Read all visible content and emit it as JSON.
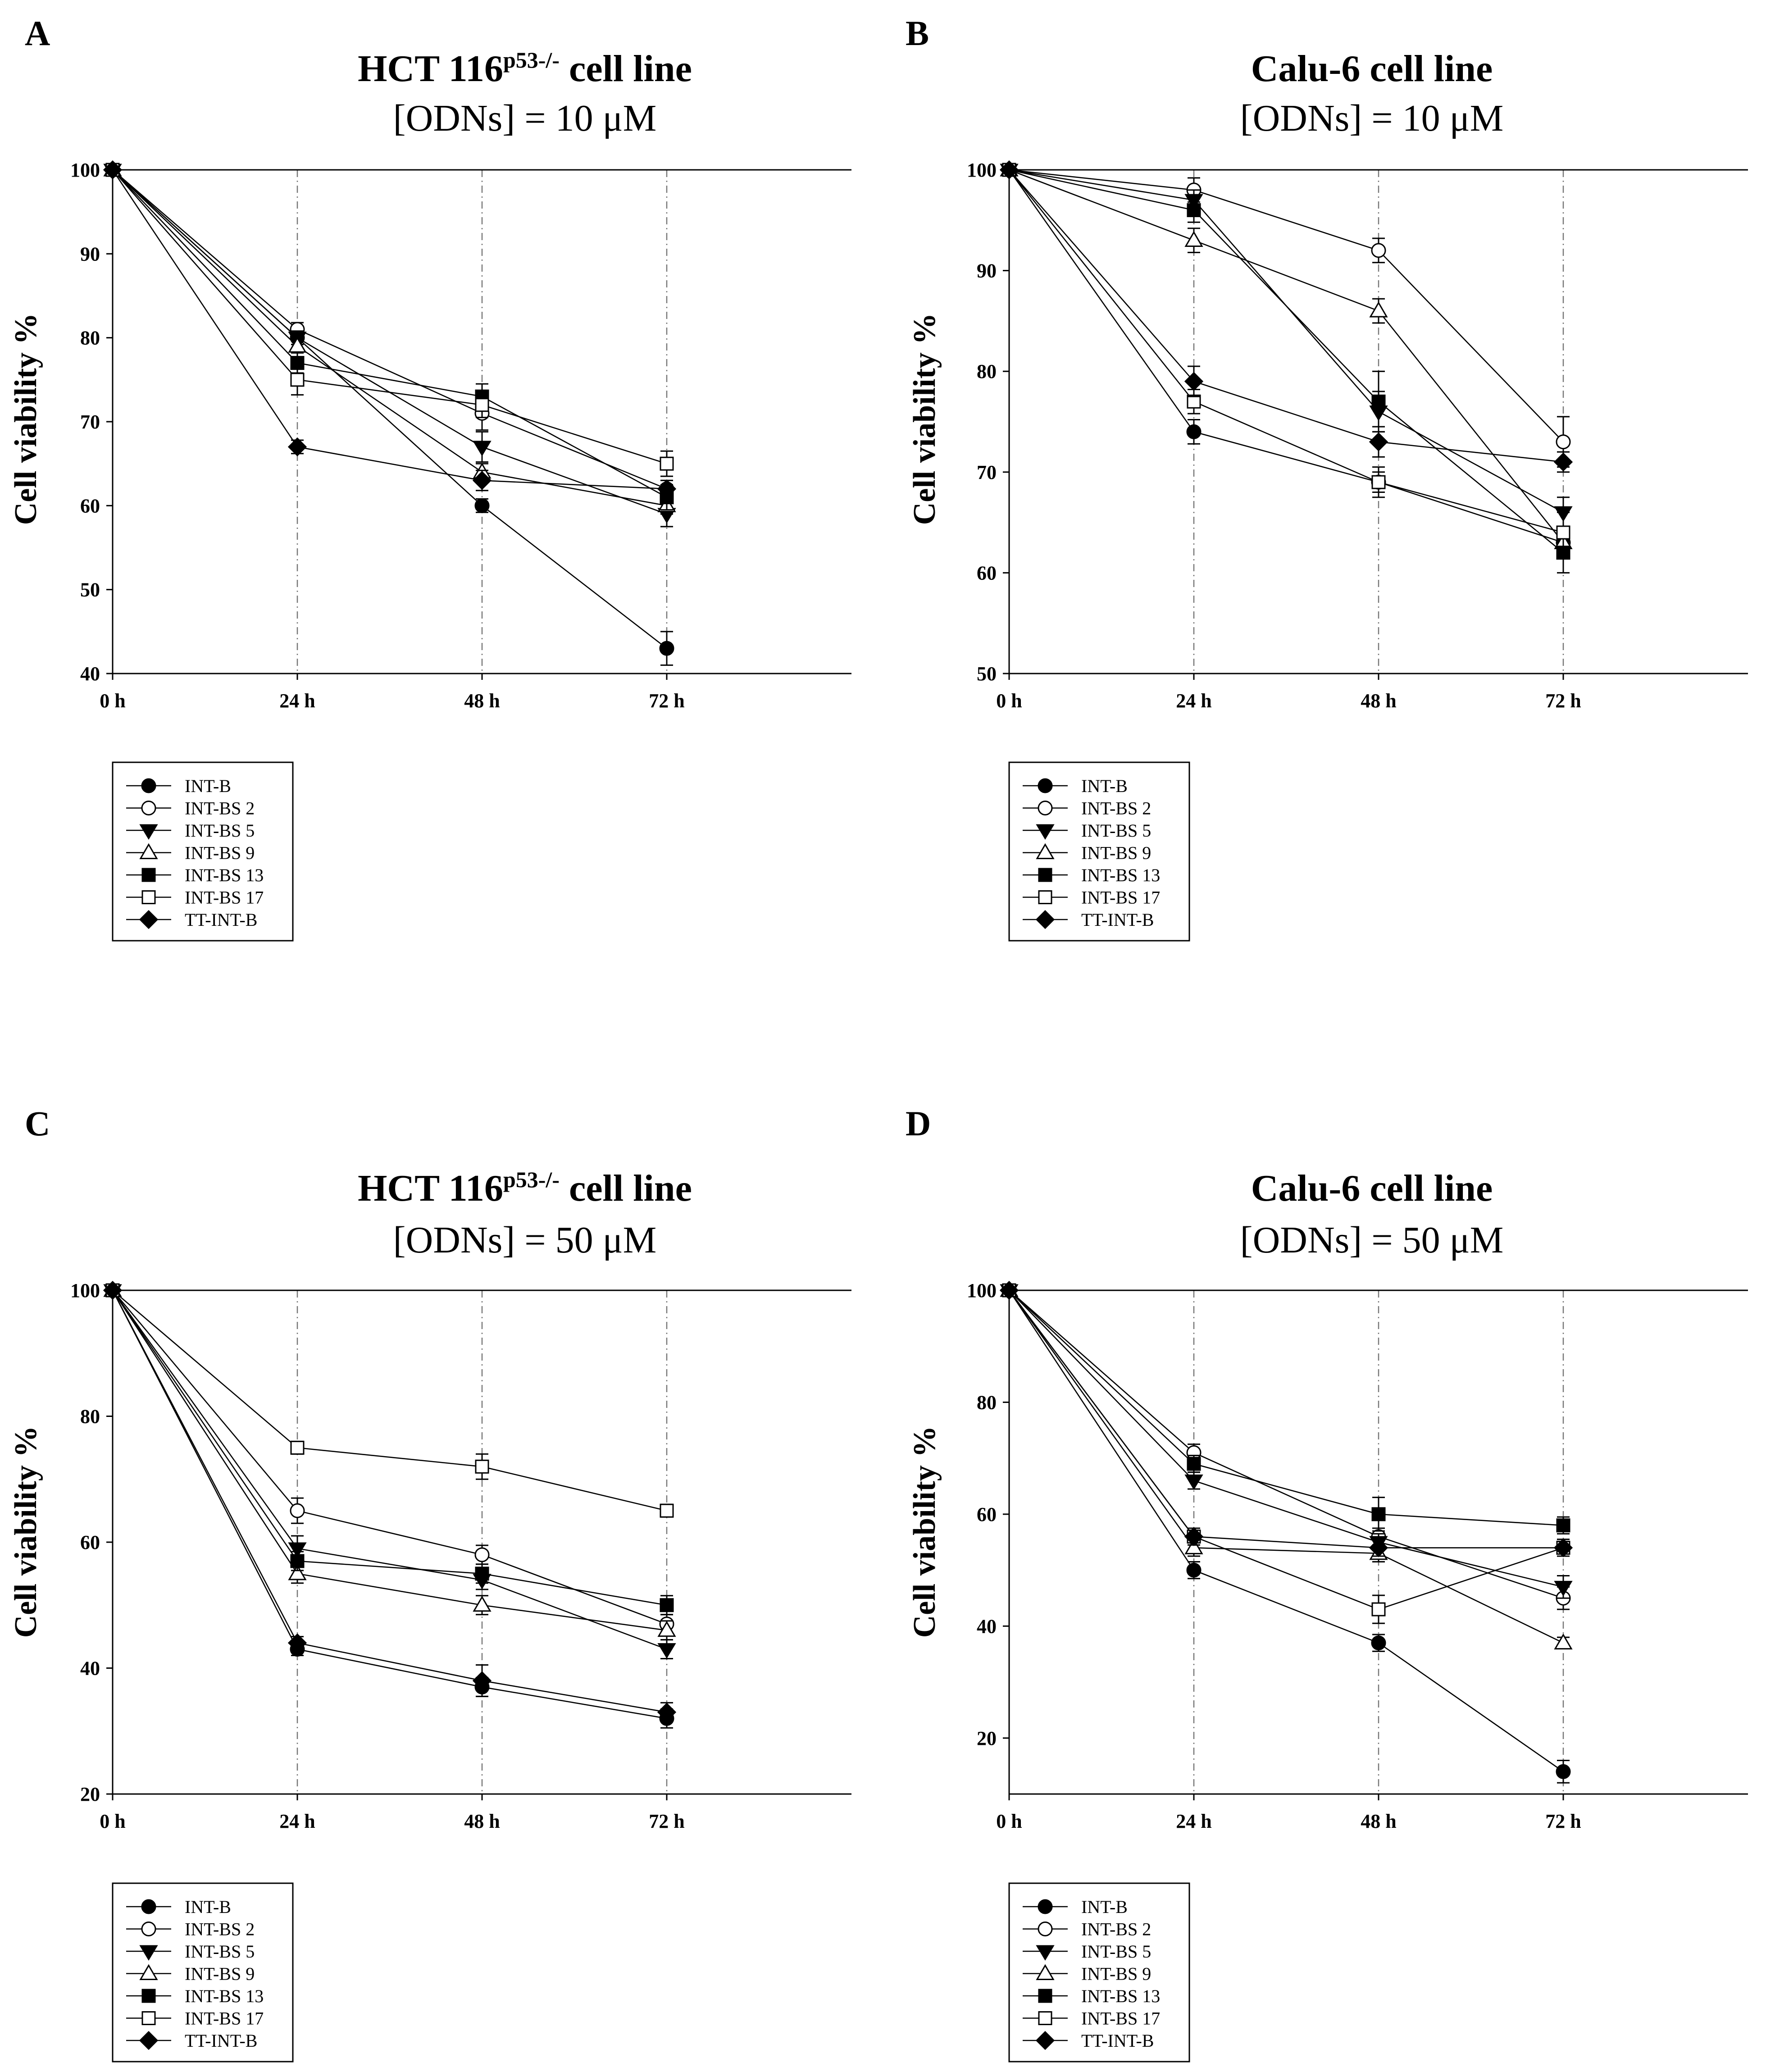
{
  "legend_order": [
    "INT-B",
    "INT-BS2",
    "INT-BS5",
    "INT-BS9",
    "INT-BS13",
    "INT-BS17",
    "TT-INT-B"
  ],
  "markers": {
    "INT-B": "filled-circle",
    "INT-BS2": "open-circle",
    "INT-BS5": "filled-triangle-down",
    "INT-BS9": "open-triangle-up",
    "INT-BS13": "filled-square",
    "INT-BS17": "open-square",
    "TT-INT-B": "filled-diamond"
  },
  "legend_labels": {
    "INT-B": "INT-B",
    "INT-BS2": "INT-BS 2",
    "INT-BS5": "INT-BS 5",
    "INT-BS9": "INT-BS 9",
    "INT-BS13": "INT-BS 13",
    "INT-BS17": "INT-BS 17",
    "TT-INT-B": "TT-INT-B"
  },
  "chart_data": [
    {
      "panel": "A",
      "type": "line",
      "title": "HCT 116",
      "title_superscript": "p53-/-",
      "title_suffix": " cell line",
      "subtitle": "[ODNs] = 10 μM",
      "xlabel": "",
      "ylabel": "Cell viability %",
      "categories": [
        "0 h",
        "24 h",
        "48 h",
        "72 h"
      ],
      "ylim": [
        40,
        100
      ],
      "yticks": [
        40,
        50,
        60,
        70,
        80,
        90,
        100
      ],
      "grid": "vertical dashed at 24 h, 48 h, 72 h",
      "series": [
        {
          "name": "INT-B",
          "values": [
            100,
            80,
            60,
            43
          ],
          "errors": [
            0,
            0.8,
            0.8,
            2
          ]
        },
        {
          "name": "INT-BS2",
          "values": [
            100,
            81,
            71,
            62
          ],
          "errors": [
            0,
            0.8,
            2,
            1
          ]
        },
        {
          "name": "INT-BS5",
          "values": [
            100,
            80,
            67,
            59
          ],
          "errors": [
            0,
            0.8,
            1.8,
            1.5
          ]
        },
        {
          "name": "INT-BS9",
          "values": [
            100,
            79,
            64,
            60
          ],
          "errors": [
            0,
            0.8,
            1,
            1
          ]
        },
        {
          "name": "INT-BS13",
          "values": [
            100,
            77,
            73,
            61
          ],
          "errors": [
            0,
            1.2,
            1.5,
            1.5
          ]
        },
        {
          "name": "INT-BS17",
          "values": [
            100,
            75,
            72,
            65
          ],
          "errors": [
            0,
            1.8,
            1.5,
            1.5
          ]
        },
        {
          "name": "TT-INT-B",
          "values": [
            100,
            67,
            63,
            62
          ],
          "errors": [
            0,
            0.8,
            1.2,
            1
          ]
        }
      ]
    },
    {
      "panel": "B",
      "type": "line",
      "title": "Calu-6 cell line",
      "title_superscript": "",
      "title_suffix": "",
      "subtitle": "[ODNs] = 10 μM",
      "xlabel": "",
      "ylabel": "Cell viability %",
      "categories": [
        "0 h",
        "24 h",
        "48 h",
        "72 h"
      ],
      "ylim": [
        50,
        100
      ],
      "yticks": [
        50,
        60,
        70,
        80,
        90,
        100
      ],
      "grid": "vertical dashed at 24 h, 48 h, 72 h",
      "series": [
        {
          "name": "INT-B",
          "values": [
            100,
            74,
            69,
            63
          ],
          "errors": [
            0,
            1.2,
            1,
            1.5
          ]
        },
        {
          "name": "INT-BS2",
          "values": [
            100,
            98,
            92,
            73
          ],
          "errors": [
            0,
            1.2,
            1.2,
            2.5
          ]
        },
        {
          "name": "INT-BS5",
          "values": [
            100,
            97,
            76,
            66
          ],
          "errors": [
            0,
            1,
            2,
            1.5
          ]
        },
        {
          "name": "INT-BS9",
          "values": [
            100,
            93,
            86,
            63
          ],
          "errors": [
            0,
            1.2,
            1.2,
            1
          ]
        },
        {
          "name": "INT-BS13",
          "values": [
            100,
            96,
            77,
            62
          ],
          "errors": [
            0,
            1.2,
            3,
            2
          ]
        },
        {
          "name": "INT-BS17",
          "values": [
            100,
            77,
            69,
            64
          ],
          "errors": [
            0,
            1.2,
            1.5,
            2
          ]
        },
        {
          "name": "TT-INT-B",
          "values": [
            100,
            79,
            73,
            71
          ],
          "errors": [
            0,
            1.5,
            1.5,
            1
          ]
        }
      ]
    },
    {
      "panel": "C",
      "type": "line",
      "title": "HCT 116",
      "title_superscript": "p53-/-",
      "title_suffix": " cell line",
      "subtitle": "[ODNs] = 50 μM",
      "xlabel": "",
      "ylabel": "Cell viability %",
      "categories": [
        "0 h",
        "24 h",
        "48 h",
        "72 h"
      ],
      "ylim": [
        20,
        100
      ],
      "yticks": [
        20,
        40,
        60,
        80,
        100
      ],
      "grid": "vertical dashed at 24 h, 48 h, 72 h",
      "series": [
        {
          "name": "INT-B",
          "values": [
            100,
            43,
            37,
            32
          ],
          "errors": [
            0,
            1,
            1.5,
            1.5
          ]
        },
        {
          "name": "INT-BS2",
          "values": [
            100,
            65,
            58,
            47
          ],
          "errors": [
            0,
            2,
            1.5,
            1.5
          ]
        },
        {
          "name": "INT-BS5",
          "values": [
            100,
            59,
            54,
            43
          ],
          "errors": [
            0,
            2,
            1.5,
            1.5
          ]
        },
        {
          "name": "INT-BS9",
          "values": [
            100,
            55,
            50,
            46
          ],
          "errors": [
            0,
            1.5,
            1.5,
            1.5
          ]
        },
        {
          "name": "INT-BS13",
          "values": [
            100,
            57,
            55,
            50
          ],
          "errors": [
            0,
            1.5,
            1.5,
            1.5
          ]
        },
        {
          "name": "INT-BS17",
          "values": [
            100,
            75,
            72,
            65
          ],
          "errors": [
            0,
            1,
            2,
            1
          ]
        },
        {
          "name": "TT-INT-B",
          "values": [
            100,
            44,
            38,
            33
          ],
          "errors": [
            0,
            1,
            2.5,
            1.5
          ]
        }
      ]
    },
    {
      "panel": "D",
      "type": "line",
      "title": "Calu-6 cell line",
      "title_superscript": "",
      "title_suffix": "",
      "subtitle": "[ODNs] = 50 μM",
      "xlabel": "",
      "ylabel": "Cell viability %",
      "categories": [
        "0 h",
        "24 h",
        "48 h",
        "72 h"
      ],
      "ylim": [
        10,
        100
      ],
      "yticks": [
        20,
        40,
        60,
        80,
        100
      ],
      "grid": "vertical dashed at 24 h, 48 h, 72 h",
      "series": [
        {
          "name": "INT-B",
          "values": [
            100,
            50,
            37,
            14
          ],
          "errors": [
            0,
            1.5,
            1.5,
            2
          ]
        },
        {
          "name": "INT-BS2",
          "values": [
            100,
            71,
            56,
            45
          ],
          "errors": [
            0,
            1.5,
            1.5,
            2
          ]
        },
        {
          "name": "INT-BS5",
          "values": [
            100,
            66,
            55,
            47
          ],
          "errors": [
            0,
            1.5,
            1.5,
            2
          ]
        },
        {
          "name": "INT-BS9",
          "values": [
            100,
            54,
            53,
            37
          ],
          "errors": [
            0,
            1.5,
            1.5,
            1
          ]
        },
        {
          "name": "INT-BS13",
          "values": [
            100,
            69,
            60,
            58
          ],
          "errors": [
            0,
            1.5,
            3,
            1.5
          ]
        },
        {
          "name": "INT-BS17",
          "values": [
            100,
            56,
            43,
            54
          ],
          "errors": [
            0,
            1.5,
            2.5,
            1.5
          ]
        },
        {
          "name": "TT-INT-B",
          "values": [
            100,
            56,
            54,
            54
          ],
          "errors": [
            0,
            1.5,
            1.5,
            1.5
          ]
        }
      ]
    }
  ]
}
